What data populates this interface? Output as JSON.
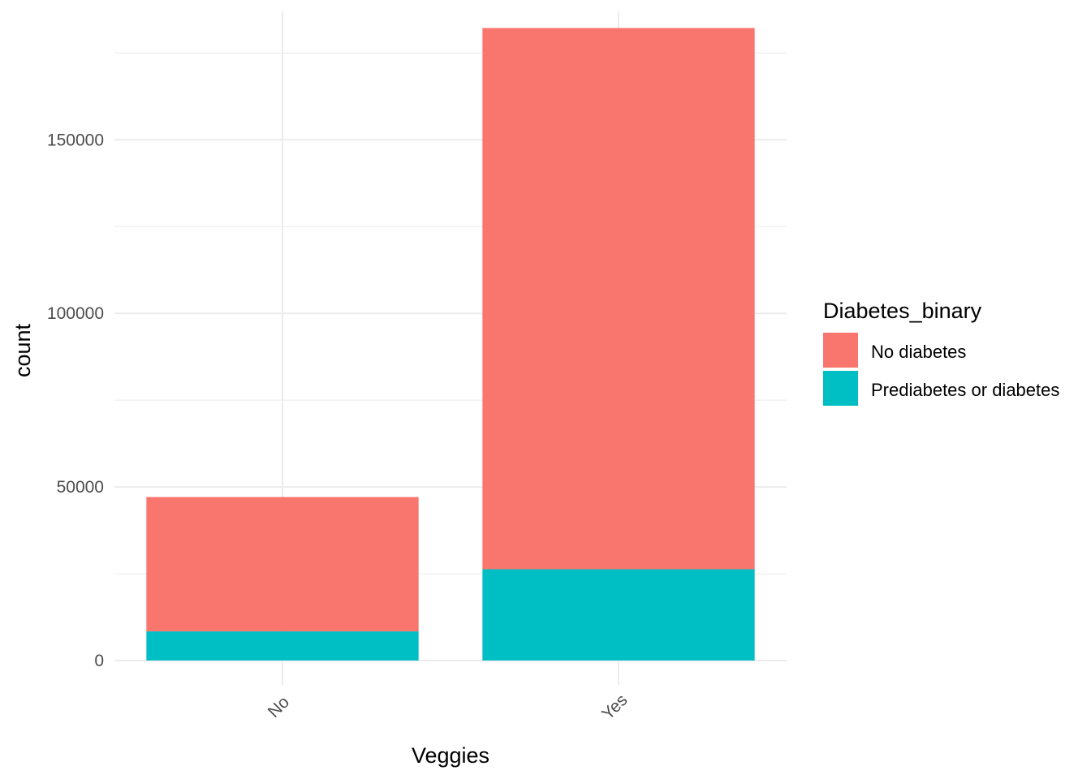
{
  "chart_data": {
    "type": "bar",
    "stacked": true,
    "xlabel": "Veggies",
    "ylabel": "count",
    "categories": [
      "No",
      "Yes"
    ],
    "series": [
      {
        "name": "No diabetes",
        "color": "#F8766D",
        "values": [
          38700,
          155900
        ]
      },
      {
        "name": "Prediabetes or diabetes",
        "color": "#00BFC4",
        "values": [
          8400,
          26300
        ]
      }
    ],
    "ylim": [
      0,
      187000
    ],
    "yticks": [
      0,
      50000,
      100000,
      150000
    ],
    "yticks_labels": [
      "0",
      "50000",
      "100000",
      "150000"
    ],
    "x_tick_rotation_deg": 45,
    "grid": true,
    "legend": {
      "title": "Diabetes_binary",
      "position": "right"
    }
  }
}
